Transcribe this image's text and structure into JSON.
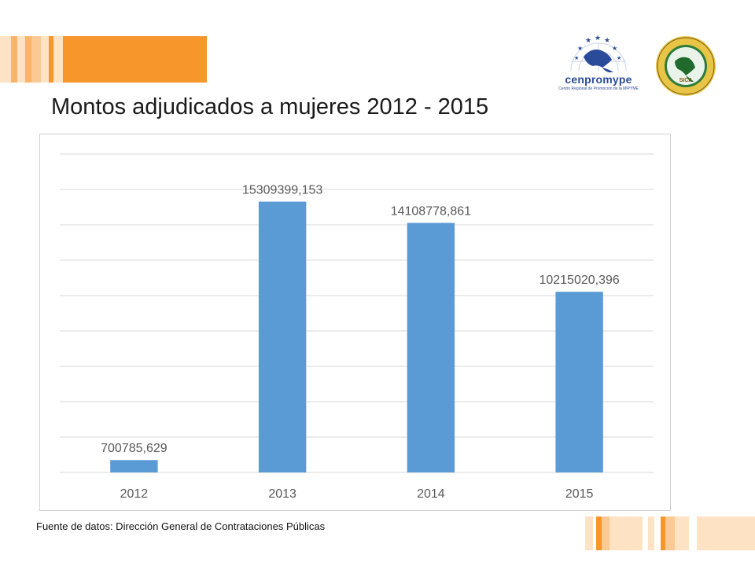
{
  "slide": {
    "title": "Montos adjudicados a mujeres 2012 - 2015",
    "source": "Fuente de datos: Dirección General de Contrataciones Públicas"
  },
  "logos": {
    "cenpromype_name": "cenpromype",
    "cenpromype_tagline": "Centro Regional de Promoción de la MIPYME",
    "sica_name": "SICA"
  },
  "colors": {
    "bar": "#5b9bd5",
    "accent_orange": "#f7962b",
    "accent_light": "#fde3c4",
    "grid": "#d9d9d9",
    "label": "#595959"
  },
  "chart_data": {
    "type": "bar",
    "categories": [
      "2012",
      "2013",
      "2014",
      "2015"
    ],
    "values": [
      700785.629,
      15309399.153,
      14108778.861,
      10215020.396
    ],
    "data_labels": [
      "700785,629",
      "15309399,153",
      "14108778,861",
      "10215020,396"
    ],
    "title": "",
    "xlabel": "",
    "ylabel": "",
    "ylim": [
      0,
      18000000
    ],
    "grid": true,
    "y_tick_labels_shown": false,
    "legend": "none"
  }
}
